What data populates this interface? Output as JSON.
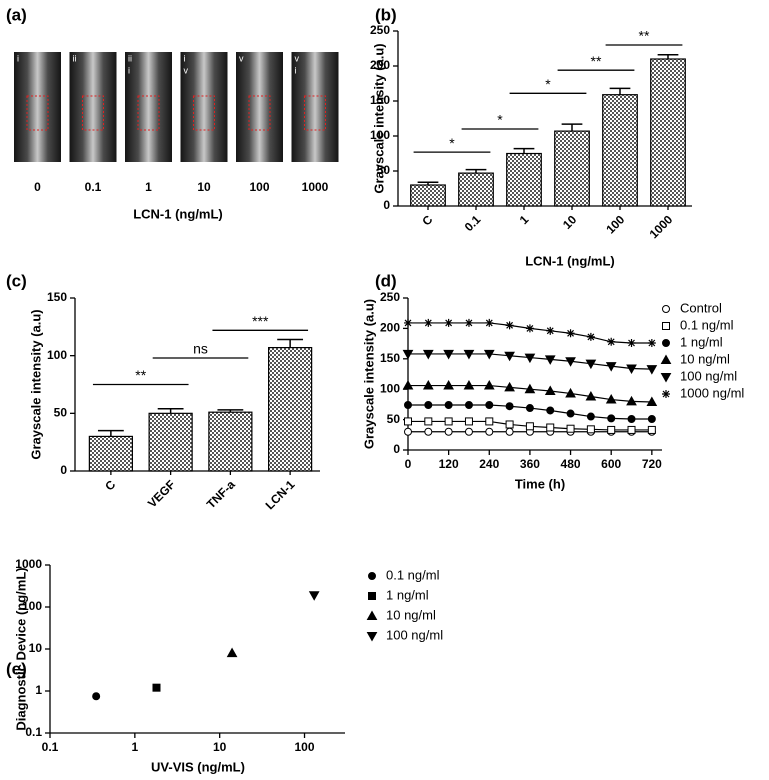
{
  "panel_a": {
    "label": "(a)",
    "xlabel": "LCN-1 (ng/mL)",
    "images": [
      {
        "tag": [
          "i"
        ],
        "caption": "0"
      },
      {
        "tag": [
          "ii"
        ],
        "caption": "0.1"
      },
      {
        "tag": [
          "ii",
          "i"
        ],
        "caption": "1"
      },
      {
        "tag": [
          "i",
          "v"
        ],
        "caption": "10"
      },
      {
        "tag": [
          "v"
        ],
        "caption": "100"
      },
      {
        "tag": [
          "v",
          "i"
        ],
        "caption": "1000"
      }
    ]
  },
  "chart_data": [
    {
      "type": "bar",
      "label": "(b)",
      "ylabel": "Grayscale intensity (a.u)",
      "xlabel": "LCN-1 (ng/mL)",
      "categories": [
        "C",
        "0.1",
        "1",
        "10",
        "100",
        "1000"
      ],
      "values": [
        30,
        47,
        75,
        107,
        159,
        210
      ],
      "errors": [
        4,
        5,
        7,
        10,
        9,
        6
      ],
      "color": "#555555",
      "ylim": [
        0,
        250
      ],
      "yticks": [
        0,
        50,
        100,
        150,
        200,
        250
      ],
      "annotations": [
        {
          "text": "*",
          "from": "C",
          "to": "0.1",
          "y": 77
        },
        {
          "text": "*",
          "from": "0.1",
          "to": "1",
          "y": 110
        },
        {
          "text": "*",
          "from": "1",
          "to": "10",
          "y": 161
        },
        {
          "text": "**",
          "from": "10",
          "to": "100",
          "y": 194
        },
        {
          "text": "**",
          "from": "100",
          "to": "1000",
          "y": 230
        }
      ]
    },
    {
      "type": "bar",
      "label": "(c)",
      "ylabel": "Grayscale intensity (a.u)",
      "categories": [
        "C",
        "VEGF",
        "TNF-a",
        "LCN-1"
      ],
      "values": [
        30,
        50,
        51,
        107
      ],
      "errors": [
        5,
        4,
        2,
        7
      ],
      "color": "#555555",
      "ylim": [
        0,
        150
      ],
      "yticks": [
        0,
        50,
        100,
        150
      ],
      "annotations": [
        {
          "text": "**",
          "from": "C",
          "to": "VEGF",
          "y": 75
        },
        {
          "text": "ns",
          "from": "VEGF",
          "to": "TNF-a",
          "y": 98
        },
        {
          "text": "***",
          "from": "TNF-a",
          "to": "LCN-1",
          "y": 122
        }
      ]
    },
    {
      "type": "line",
      "label": "(d)",
      "ylabel": "Grayscale intensity (a.u)",
      "xlabel": "Time (h)",
      "x": [
        0,
        60,
        120,
        180,
        240,
        300,
        360,
        420,
        480,
        540,
        600,
        660,
        720
      ],
      "xlim": [
        0,
        750
      ],
      "xticks": [
        0,
        120,
        240,
        360,
        480,
        600,
        720
      ],
      "ylim": [
        0,
        250
      ],
      "yticks": [
        0,
        50,
        100,
        150,
        200,
        250
      ],
      "series": [
        {
          "name": "Control",
          "color": "#000000",
          "marker": "circle-open",
          "values": [
            30,
            30,
            30,
            30,
            30,
            30,
            30,
            30,
            30,
            30,
            30,
            30,
            30
          ]
        },
        {
          "name": "0.1 ng/ml",
          "color": "#000000",
          "marker": "square-open",
          "values": [
            47,
            47,
            47,
            47,
            47,
            42,
            39,
            37,
            35,
            34,
            33,
            33,
            33
          ]
        },
        {
          "name": "1 ng/ml",
          "color": "#000000",
          "marker": "circle",
          "values": [
            74,
            74,
            74,
            74,
            74,
            72,
            69,
            65,
            60,
            55,
            52,
            51,
            51
          ]
        },
        {
          "name": "10 ng/ml",
          "color": "#000000",
          "marker": "triangle-up",
          "values": [
            106,
            106,
            106,
            106,
            106,
            103,
            100,
            97,
            93,
            88,
            83,
            80,
            79
          ]
        },
        {
          "name": "100 ng/ml",
          "color": "#000000",
          "marker": "triangle-down",
          "values": [
            158,
            158,
            158,
            158,
            158,
            155,
            152,
            149,
            146,
            142,
            138,
            134,
            133
          ]
        },
        {
          "name": "1000 ng/ml",
          "color": "#000000",
          "marker": "star",
          "values": [
            209,
            209,
            209,
            209,
            209,
            205,
            200,
            196,
            192,
            186,
            178,
            176,
            176
          ]
        }
      ]
    },
    {
      "type": "scatter",
      "label": "(e)",
      "ylabel": "Diagnostic Device (ng/mL)",
      "xlabel": "UV-VIS (ng/mL)",
      "xscale": "log",
      "yscale": "log",
      "xlim": [
        0.1,
        300
      ],
      "ylim": [
        0.1,
        1000
      ],
      "xticks": [
        0.1,
        1,
        10,
        100
      ],
      "yticks": [
        0.1,
        1,
        10,
        100,
        1000
      ],
      "series": [
        {
          "name": "0.1 ng/ml",
          "color": "#000000",
          "marker": "circle",
          "x": [
            0.35
          ],
          "values": [
            0.75
          ]
        },
        {
          "name": "1 ng/ml",
          "color": "#000000",
          "marker": "square",
          "x": [
            1.8
          ],
          "values": [
            1.2
          ]
        },
        {
          "name": "10 ng/ml",
          "color": "#000000",
          "marker": "triangle-up",
          "x": [
            14
          ],
          "values": [
            8
          ]
        },
        {
          "name": "100 ng/ml",
          "color": "#000000",
          "marker": "triangle-down",
          "x": [
            130
          ],
          "values": [
            190
          ]
        }
      ]
    }
  ]
}
